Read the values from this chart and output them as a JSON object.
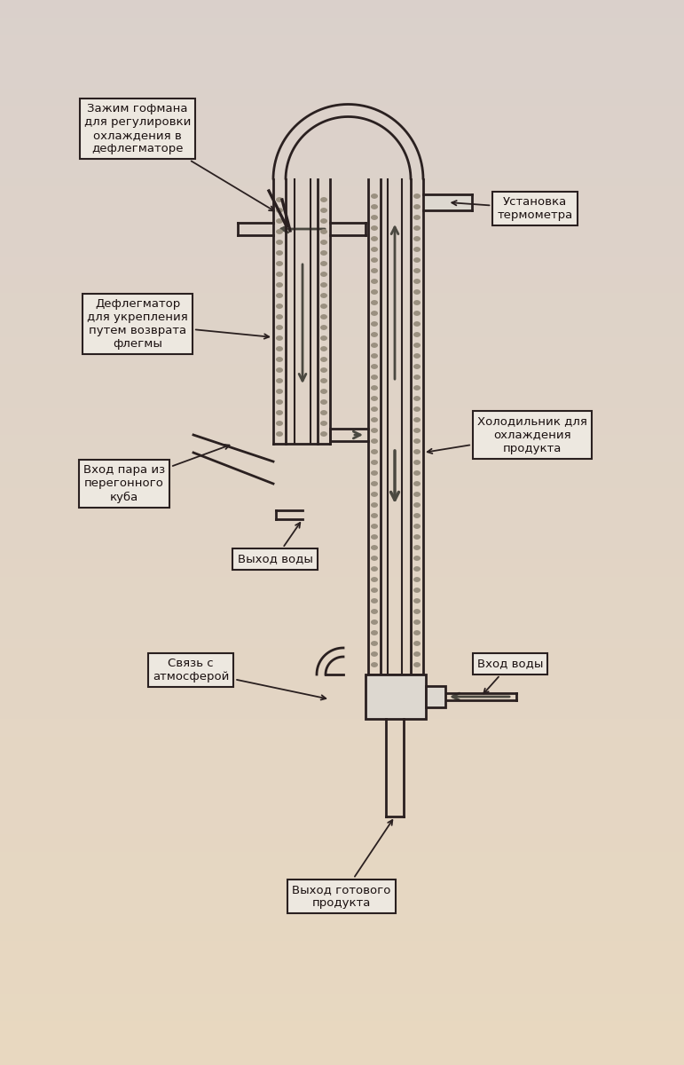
{
  "bg_color": "#e8ddd0",
  "line_color": "#2a2020",
  "packing_color": "#9a9080",
  "arrow_color": "#4a4840",
  "label_bg": "#ede8e0",
  "label_edge": "#2a2020",
  "therm_fill": "#ddd8d0",
  "figsize": [
    7.71,
    12.0
  ],
  "dpi": 100,
  "labels": {
    "clamp": "Зажим гофмана\nдля регулировки\nохлаждения в\nдефлегматоре",
    "thermometer": "Установка\nтермометра",
    "dephlegmator": "Дефлегматор\nдля укрепления\nпутем возврата\nфлегмы",
    "cooler": "Холодильник для\nохлаждения\nпродукта",
    "steam_in": "Вход пара из\nперегонного\nкуба",
    "water_out": "Выход воды",
    "atmosphere": "Связь с\nатмосферой",
    "water_in": "Вход воды",
    "product_out": "Выход готового\nпродукта"
  }
}
